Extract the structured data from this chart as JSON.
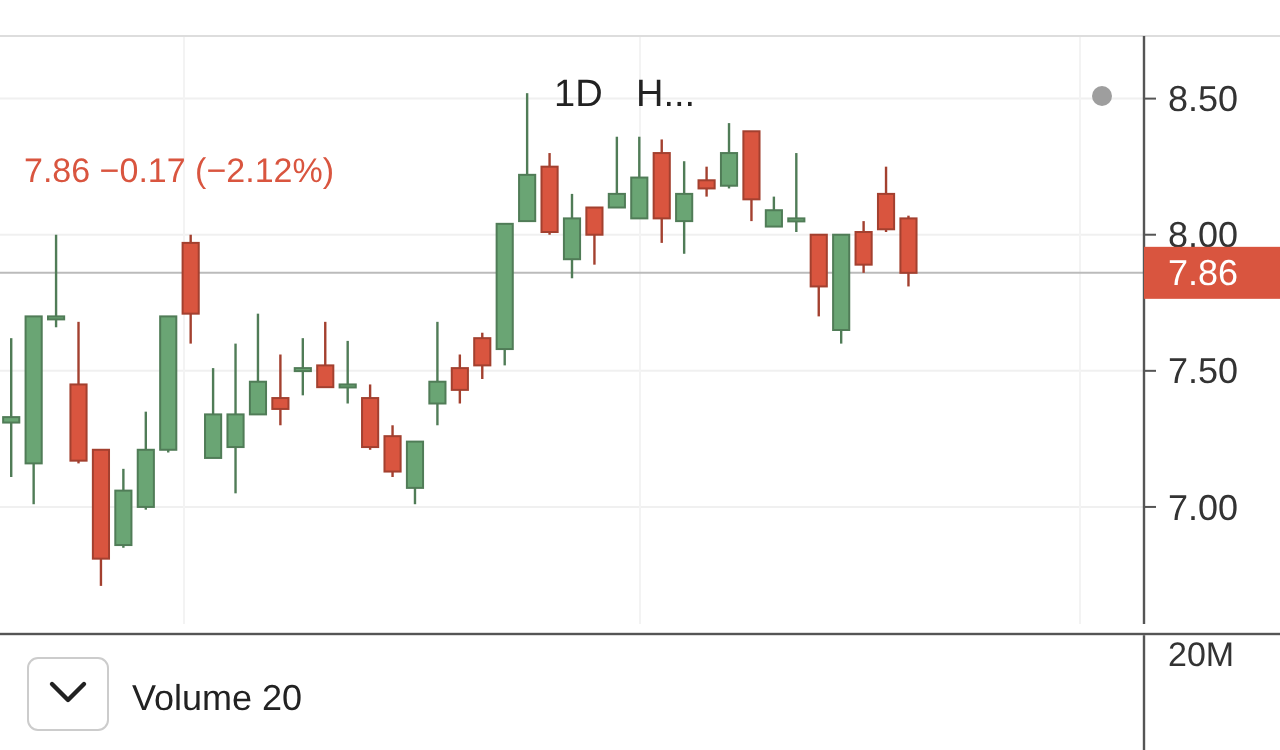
{
  "chart_data": [
    {
      "type": "candlestick",
      "categories": [
        null,
        null,
        null,
        null,
        null,
        null,
        null,
        null,
        null,
        null,
        null,
        null,
        null,
        null,
        null,
        null,
        null,
        null,
        null,
        null,
        null,
        null,
        null,
        null,
        null,
        null,
        null,
        null,
        null,
        null,
        null,
        null,
        null,
        null,
        null,
        null,
        null,
        null,
        null,
        null,
        null,
        null,
        null,
        null,
        null,
        null,
        null,
        null,
        null,
        null,
        null
      ],
      "ohlc": [
        [
          7.31,
          7.62,
          7.11,
          7.33
        ],
        [
          7.16,
          7.7,
          7.01,
          7.7
        ],
        [
          7.69,
          8.0,
          7.66,
          7.7
        ],
        [
          7.45,
          7.68,
          7.16,
          7.17
        ],
        [
          7.21,
          7.21,
          6.71,
          6.81
        ],
        [
          6.86,
          7.14,
          6.85,
          7.06
        ],
        [
          7.0,
          7.35,
          6.99,
          7.21
        ],
        [
          7.21,
          7.7,
          7.2,
          7.7
        ],
        [
          7.97,
          8.0,
          7.6,
          7.71
        ],
        [
          7.18,
          7.51,
          7.18,
          7.34
        ],
        [
          7.22,
          7.6,
          7.05,
          7.34
        ],
        [
          7.34,
          7.71,
          7.34,
          7.46
        ],
        [
          7.4,
          7.56,
          7.3,
          7.36
        ],
        [
          7.5,
          7.62,
          7.41,
          7.51
        ],
        [
          7.52,
          7.68,
          7.44,
          7.44
        ],
        [
          7.44,
          7.61,
          7.38,
          7.45
        ],
        [
          7.4,
          7.45,
          7.21,
          7.22
        ],
        [
          7.26,
          7.3,
          7.11,
          7.13
        ],
        [
          7.07,
          7.24,
          7.01,
          7.24
        ],
        [
          7.38,
          7.68,
          7.3,
          7.46
        ],
        [
          7.51,
          7.56,
          7.38,
          7.43
        ],
        [
          7.62,
          7.64,
          7.47,
          7.52
        ],
        [
          7.58,
          8.04,
          7.52,
          8.04
        ],
        [
          8.05,
          8.52,
          8.05,
          8.22
        ],
        [
          8.25,
          8.3,
          8.0,
          8.01
        ],
        [
          7.91,
          8.15,
          7.84,
          8.06
        ],
        [
          8.1,
          8.1,
          7.89,
          8.0
        ],
        [
          8.1,
          8.36,
          8.1,
          8.15
        ],
        [
          8.06,
          8.36,
          8.06,
          8.21
        ],
        [
          8.3,
          8.35,
          7.97,
          8.06
        ],
        [
          8.05,
          8.27,
          7.93,
          8.15
        ],
        [
          8.2,
          8.25,
          8.14,
          8.17
        ],
        [
          8.18,
          8.41,
          8.17,
          8.3
        ],
        [
          8.38,
          8.38,
          8.05,
          8.13
        ],
        [
          8.03,
          8.14,
          8.03,
          8.09
        ],
        [
          8.05,
          8.3,
          8.01,
          8.06
        ],
        [
          8.0,
          8.0,
          7.7,
          7.81
        ],
        [
          7.65,
          8.0,
          7.6,
          8.0
        ],
        [
          8.01,
          8.05,
          7.86,
          7.89
        ],
        [
          8.15,
          8.25,
          8.01,
          8.02
        ],
        [
          8.06,
          8.07,
          7.81,
          7.86
        ],
        null,
        null,
        null,
        null,
        null,
        null,
        null,
        null,
        null,
        null
      ],
      "colors": [
        "#6aa574",
        "#6aa574",
        "#6aa574",
        "#d9553f",
        "#d9553f",
        "#6aa574",
        "#6aa574",
        "#6aa574",
        "#d9553f",
        "#6aa574",
        "#6aa574",
        "#6aa574",
        "#d9553f",
        "#6aa574",
        "#d9553f",
        "#6aa574",
        "#d9553f",
        "#d9553f",
        "#6aa574",
        "#6aa574",
        "#d9553f",
        "#d9553f",
        "#6aa574",
        "#6aa574",
        "#d9553f",
        "#6aa574",
        "#d9553f",
        "#6aa574",
        "#6aa574",
        "#d9553f",
        "#6aa574",
        "#d9553f",
        "#6aa574",
        "#d9553f",
        "#6aa574",
        "#6aa574",
        "#d9553f",
        "#6aa574",
        "#d9553f",
        "#d9553f",
        "#d9553f",
        null,
        null,
        null,
        null,
        null,
        null,
        null,
        null,
        null,
        null
      ],
      "ylim": [
        6.57,
        8.73
      ],
      "yticks": [
        {
          "value": 7,
          "label": "7.00"
        },
        {
          "value": 7.5,
          "label": "7.50"
        },
        {
          "value": 8,
          "label": "8.00"
        },
        {
          "value": 8.5,
          "label": "8.50"
        }
      ],
      "grid": true,
      "ref_lines": [
        {
          "axis": "y",
          "value": 7.86,
          "label": "7.86"
        }
      ],
      "annotations": [
        "1D",
        "H...",
        "7.86 −0.17 (−2.12%)"
      ]
    },
    {
      "type": "other",
      "annotations": [
        "Volume 20",
        "20M"
      ]
    }
  ]
}
